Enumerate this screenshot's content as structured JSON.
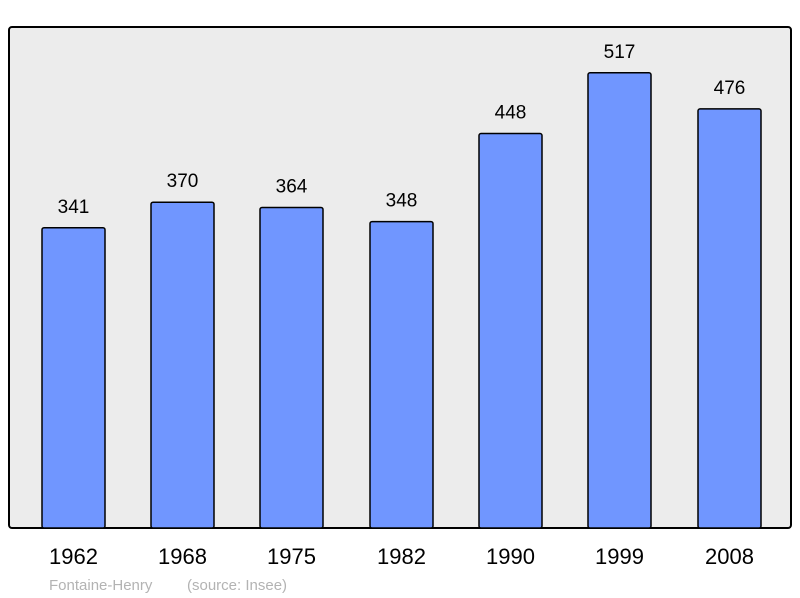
{
  "chart_data": {
    "type": "bar",
    "categories": [
      "1962",
      "1968",
      "1975",
      "1982",
      "1990",
      "1999",
      "2008"
    ],
    "values": [
      341,
      370,
      364,
      348,
      448,
      517,
      476
    ],
    "data_labels": [
      "341",
      "370",
      "364",
      "348",
      "448",
      "517",
      "476"
    ],
    "title": "",
    "xlabel": "",
    "ylabel": "",
    "ylim": [
      0,
      569
    ],
    "grid": false,
    "legend": "none",
    "colors": {
      "bar": "#7096ff",
      "plot_background": "#ececec",
      "border": "#000000",
      "caption": "#b3b3b3"
    }
  },
  "caption": {
    "place": "Fontaine-Henry",
    "source": "(source: Insee)"
  }
}
